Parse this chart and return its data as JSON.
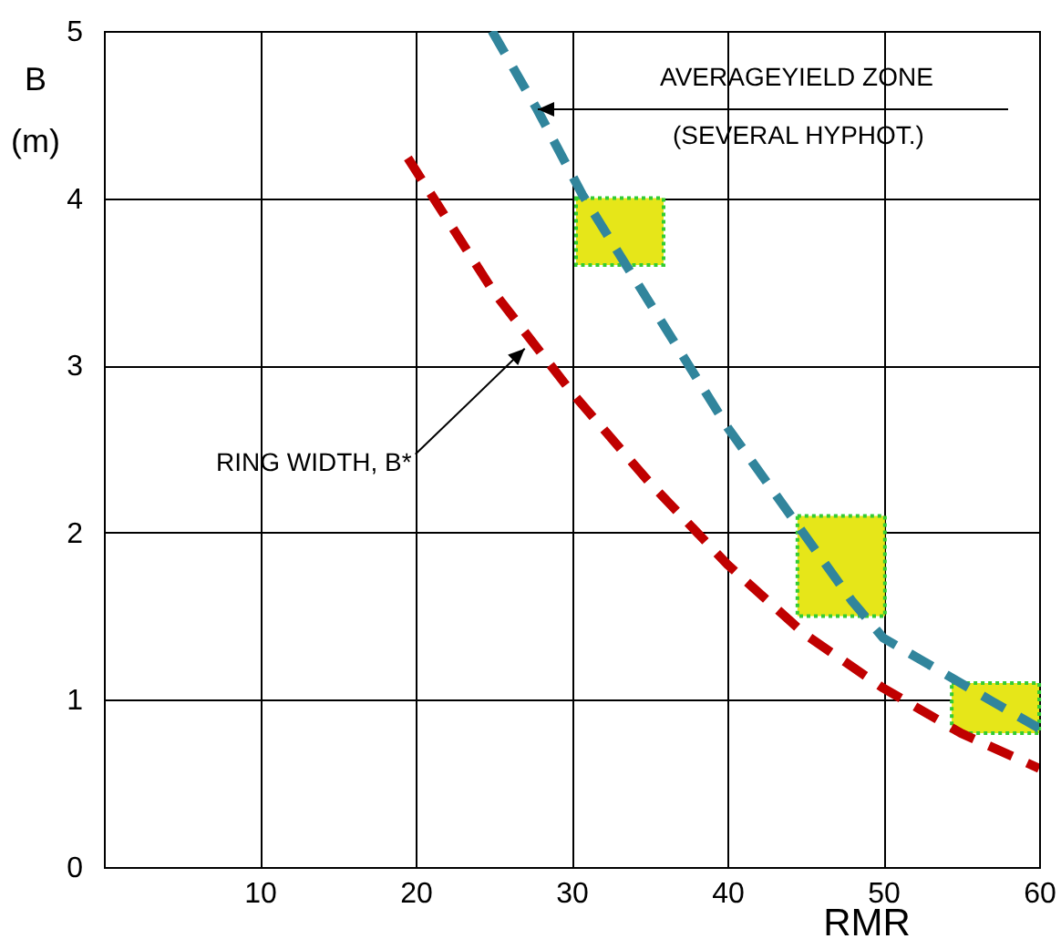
{
  "chart_data": {
    "type": "line",
    "xlabel": "RMR",
    "ylabel": "B\n(m)",
    "xlim": [
      0,
      60
    ],
    "ylim": [
      0,
      5
    ],
    "xticks": [
      {
        "value": 0,
        "label": null
      },
      10,
      20,
      30,
      40,
      50,
      60
    ],
    "yticks": [
      0,
      1,
      2,
      3,
      4,
      5
    ],
    "grid": true,
    "series": [
      {
        "type": "bar",
        "color": "#e6e619",
        "x": [
          33.1,
          47.3,
          57.2
        ],
        "base": [
          3.6,
          1.5,
          0.8
        ],
        "values": [
          0.4,
          0.6,
          0.3
        ]
      },
      {
        "color": "#c00000",
        "line_style": "dashed",
        "marker": "none",
        "x": [
          19.5,
          25,
          30,
          35,
          40,
          45,
          50,
          55,
          60
        ],
        "values": [
          4.24,
          3.44,
          2.84,
          2.3,
          1.81,
          1.39,
          1.07,
          0.8,
          0.59
        ]
      },
      {
        "color": "#31859c",
        "line_style": "dashed",
        "marker": "none",
        "x": [
          24.9,
          27.8,
          30.7,
          33.5,
          40,
          48,
          50,
          57,
          60
        ],
        "values": [
          5,
          4.53,
          4.02,
          3.6,
          2.63,
          1.59,
          1.37,
          0.99,
          0.83
        ]
      }
    ],
    "annotations": [
      "AVERAGEYIELD ZONE",
      "(SEVERAL HYPHOT.)",
      {
        "text": "RING WIDTH, B*",
        "x": 27,
        "y": 3.1
      }
    ]
  }
}
